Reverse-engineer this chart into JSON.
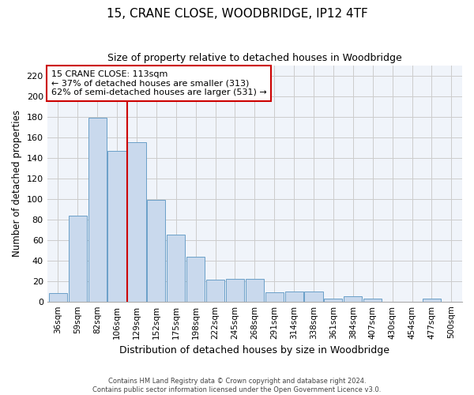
{
  "title1": "15, CRANE CLOSE, WOODBRIDGE, IP12 4TF",
  "title2": "Size of property relative to detached houses in Woodbridge",
  "xlabel": "Distribution of detached houses by size in Woodbridge",
  "ylabel": "Number of detached properties",
  "footer1": "Contains HM Land Registry data © Crown copyright and database right 2024.",
  "footer2": "Contains public sector information licensed under the Open Government Licence v3.0.",
  "categories": [
    "36sqm",
    "59sqm",
    "82sqm",
    "106sqm",
    "129sqm",
    "152sqm",
    "175sqm",
    "198sqm",
    "222sqm",
    "245sqm",
    "268sqm",
    "291sqm",
    "314sqm",
    "338sqm",
    "361sqm",
    "384sqm",
    "407sqm",
    "430sqm",
    "454sqm",
    "477sqm",
    "500sqm"
  ],
  "values": [
    8,
    84,
    179,
    147,
    155,
    99,
    65,
    44,
    21,
    22,
    22,
    9,
    10,
    10,
    3,
    5,
    3,
    0,
    0,
    3,
    0
  ],
  "bar_color": "#c9d9ed",
  "bar_edge_color": "#6a9fc8",
  "annotation_line1": "15 CRANE CLOSE: 113sqm",
  "annotation_line2": "← 37% of detached houses are smaller (313)",
  "annotation_line3": "62% of semi-detached houses are larger (531) →",
  "vline_color": "#cc0000",
  "annotation_box_edge": "#cc0000",
  "vline_x": 3.5,
  "ylim": [
    0,
    230
  ],
  "yticks": [
    0,
    20,
    40,
    60,
    80,
    100,
    120,
    140,
    160,
    180,
    200,
    220
  ],
  "grid_color": "#cccccc",
  "bg_color": "#f0f4fa"
}
